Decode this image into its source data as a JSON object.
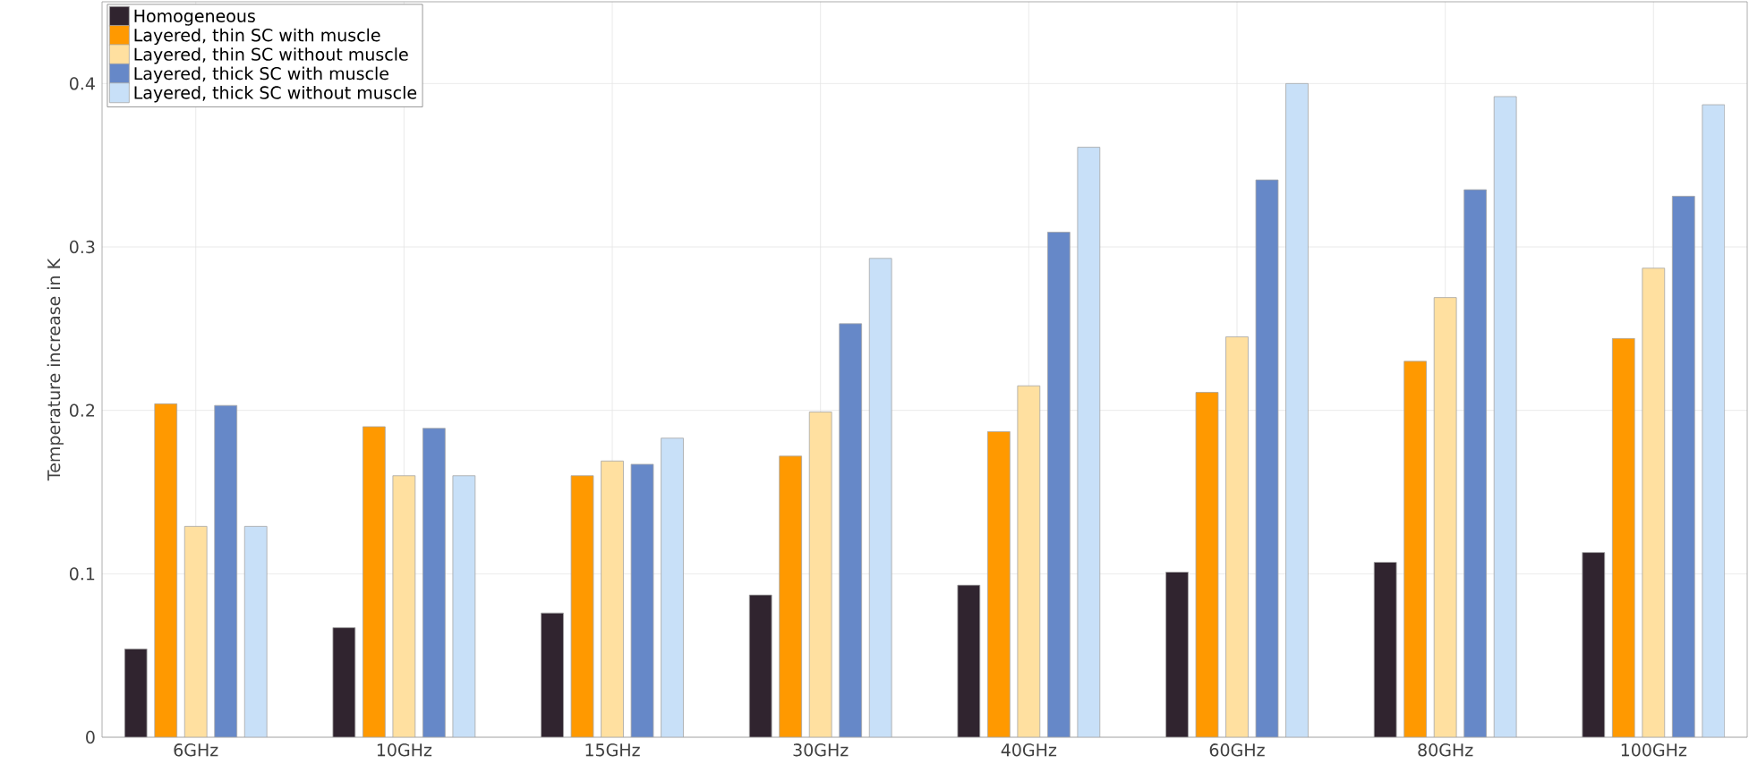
{
  "chart_data": {
    "type": "bar",
    "ylabel": "Temperature increase in K",
    "categories": [
      "6GHz",
      "10GHz",
      "15GHz",
      "30GHz",
      "40GHz",
      "60GHz",
      "80GHz",
      "100GHz"
    ],
    "series": [
      {
        "name": "Homogeneous",
        "color": "#30242f",
        "values": [
          0.054,
          0.067,
          0.076,
          0.087,
          0.093,
          0.101,
          0.107,
          0.113
        ]
      },
      {
        "name": "Layered, thin SC with muscle",
        "color": "#ff9900",
        "values": [
          0.204,
          0.19,
          0.16,
          0.172,
          0.187,
          0.211,
          0.23,
          0.244
        ]
      },
      {
        "name": "Layered, thin SC without muscle",
        "color": "#ffe0a0",
        "values": [
          0.129,
          0.16,
          0.169,
          0.199,
          0.215,
          0.245,
          0.269,
          0.287
        ]
      },
      {
        "name": "Layered, thick SC with muscle",
        "color": "#6688c8",
        "values": [
          0.203,
          0.189,
          0.167,
          0.253,
          0.309,
          0.341,
          0.335,
          0.331
        ]
      },
      {
        "name": "Layered, thick SC without muscle",
        "color": "#c8e0f8",
        "values": [
          0.129,
          0.16,
          0.183,
          0.293,
          0.361,
          0.4,
          0.392,
          0.387
        ]
      }
    ],
    "ylim": [
      0,
      0.45
    ],
    "yticks": [
      0,
      0.1,
      0.2,
      0.3,
      0.4
    ],
    "grid": true,
    "legend": "top left"
  }
}
